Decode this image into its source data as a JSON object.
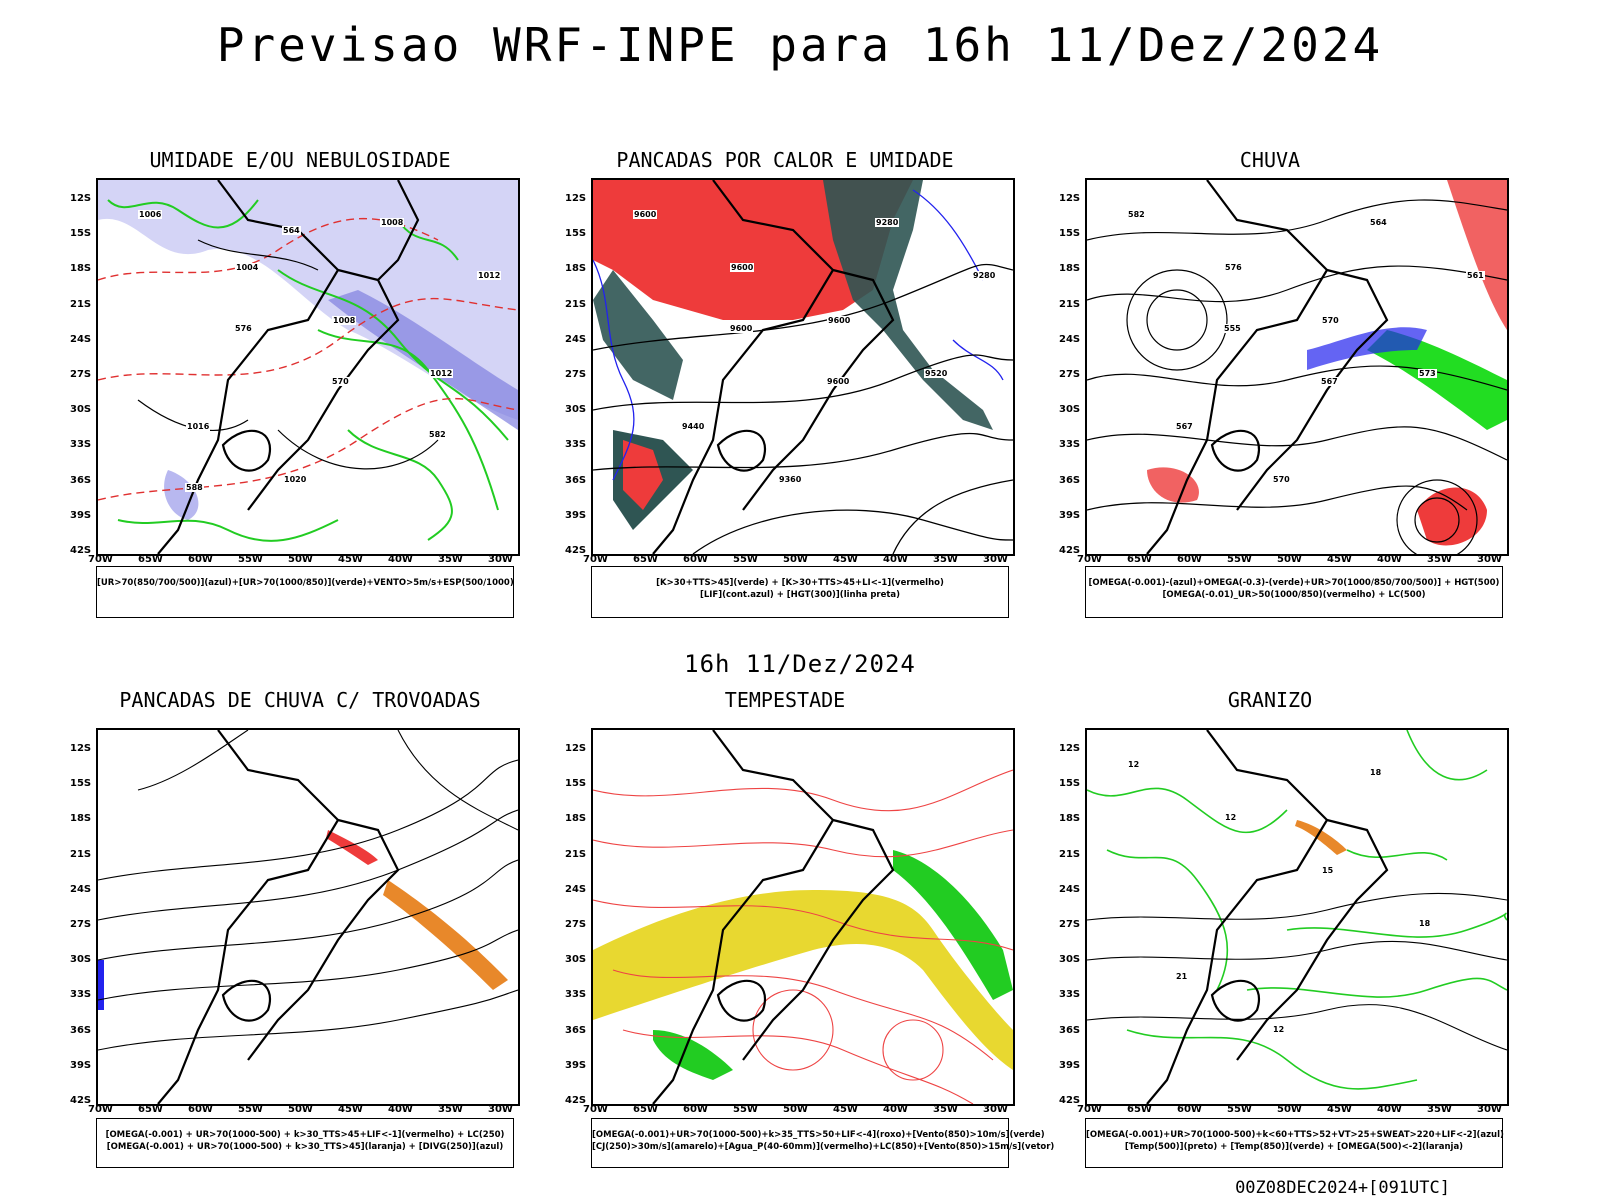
{
  "title": "Previsao WRF-INPE  para 16h 11/Dez/2024",
  "subtitle": "16h 11/Dez/2024",
  "footer": "00Z08DEC2024+[091UTC]",
  "lat_labels": [
    "12S",
    "15S",
    "18S",
    "21S",
    "24S",
    "27S",
    "30S",
    "33S",
    "36S",
    "39S",
    "42S"
  ],
  "lon_labels": [
    "70W",
    "65W",
    "60W",
    "55W",
    "50W",
    "45W",
    "40W",
    "35W",
    "30W"
  ],
  "panels": [
    {
      "title": "UMIDADE E/OU NEBULOSIDADE",
      "legend": [
        "[UR>70(850/700/500)](azul)+[UR>70(1000/850)](verde)+VENTO>5m/s+ESP(500/1000)"
      ],
      "contour_labels": [
        "1006",
        "1004",
        "1008",
        "1012",
        "1016",
        "1020",
        "1008",
        "1012",
        "576",
        "570",
        "582",
        "588",
        "564"
      ]
    },
    {
      "title": "PANCADAS POR CALOR E UMIDADE",
      "legend": [
        "[K>30+TTS>45](verde) + [K>30+TTS>45+LI<-1](vermelho)",
        "[LIF](cont.azul) + [HGT(300)](linha preta)"
      ],
      "contour_labels": [
        "9600",
        "9600",
        "9600",
        "9520",
        "9440",
        "9360",
        "9280",
        "9280",
        "9600",
        "9600"
      ]
    },
    {
      "title": "CHUVA",
      "legend": [
        "[OMEGA(-0.001)-(azul)+OMEGA(-0.3)-(verde)+UR>70(1000/850/700/500)] + HGT(500)",
        "[OMEGA(-0.01)_UR>50(1000/850)(vermelho) + LC(500)"
      ],
      "contour_labels": [
        "582",
        "576",
        "570",
        "573",
        "567",
        "570",
        "564",
        "561",
        "555",
        "567"
      ]
    },
    {
      "title": "PANCADAS DE CHUVA C/ TROVOADAS",
      "legend": [
        "[OMEGA(-0.001) + UR>70(1000-500) + k>30_TTS>45+LIF<-1](vermelho) + LC(250)",
        "[OMEGA(-0.001) + UR>70(1000-500) + k>30_TTS>45](laranja) + [DIVG(250)](azul)"
      ],
      "contour_labels": []
    },
    {
      "title": "TEMPESTADE",
      "legend": [
        "[OMEGA(-0.001)+UR>70(1000-500)+k>35_TTS>50+LIF<-4](roxo)+[Vento(850)>10m/s](verde)",
        "[CJ(250)>30m/s](amarelo)+[Agua_P(40-60mm)](vermelho)+LC(850)+[Vento(850)>15m/s](vetor)"
      ],
      "contour_labels": []
    },
    {
      "title": "GRANIZO",
      "legend": [
        "[OMEGA(-0.001)+UR>70(1000-500)+k<60+TTS>52+VT>25+SWEAT>220+LIF<-2](azul)",
        "[Temp(500)](preto) + [Temp(850)](verde) + [OMEGA(500)<-2](laranja)"
      ],
      "contour_labels": [
        "12",
        "12",
        "15",
        "18",
        "21",
        "12",
        "18"
      ]
    }
  ]
}
